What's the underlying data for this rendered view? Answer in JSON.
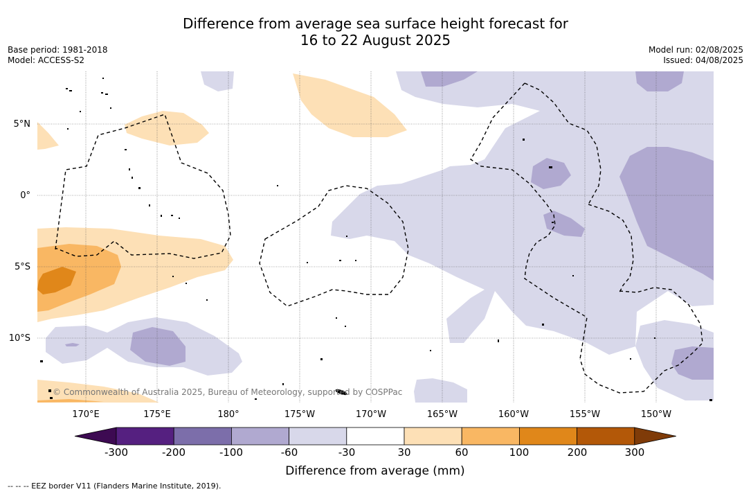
{
  "title_line1": "Difference from average sea surface height forecast for",
  "title_line2": "16 to 22 August 2025",
  "base_period": "Base period: 1981-2018",
  "model": "Model: ACCESS-S2",
  "model_run": "Model run: 02/08/2025",
  "issued": "Issued: 04/08/2025",
  "copyright": "© Commonwealth of Australia 2025, Bureau of Meteorology, supported by COSPPac",
  "lat_labels": [
    "5°N",
    "0°",
    "5°S",
    "10°S"
  ],
  "lon_labels": [
    "170°E",
    "175°E",
    "180°",
    "175°W",
    "170°W",
    "165°W",
    "160°W",
    "155°W",
    "150°W"
  ],
  "colorbar": {
    "title": "Difference from average (mm)",
    "tick_labels": [
      "-300",
      "-200",
      "-100",
      "-60",
      "-30",
      "30",
      "60",
      "100",
      "200",
      "300"
    ],
    "colors": [
      "#3d0a52",
      "#552080",
      "#7c6eaa",
      "#b0a9d0",
      "#d8d8ea",
      "#ffffff",
      "#fde0b6",
      "#f9b763",
      "#e0871a",
      "#b35808",
      "#7f3b08"
    ]
  },
  "footnote": "-- -- -- EEZ border V11 (Flanders Marine Institute, 2019)."
}
